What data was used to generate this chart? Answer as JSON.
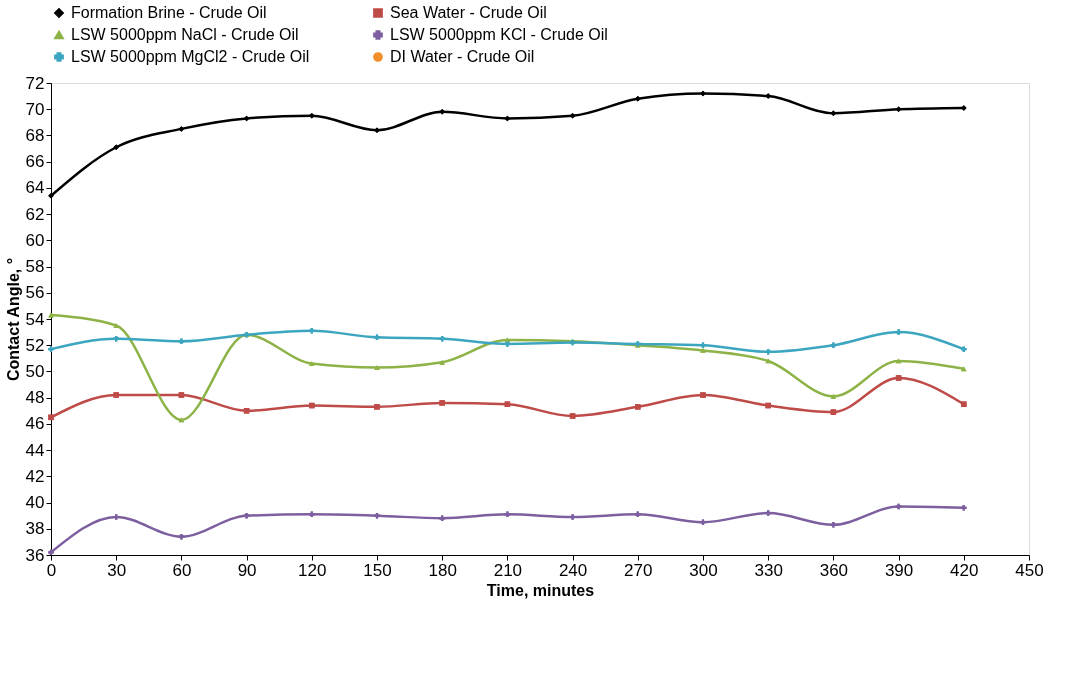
{
  "chart_data": {
    "type": "line",
    "xlabel": "Time, minutes",
    "ylabel": "Contact Angle, °",
    "x": [
      0,
      30,
      60,
      90,
      120,
      150,
      180,
      210,
      240,
      270,
      300,
      330,
      360,
      390,
      420
    ],
    "xlim": [
      0,
      450
    ],
    "xticks": [
      0,
      30,
      60,
      90,
      120,
      150,
      180,
      210,
      240,
      270,
      300,
      330,
      360,
      390,
      420,
      450
    ],
    "ylim": [
      36,
      72
    ],
    "yticks": [
      36,
      38,
      40,
      42,
      44,
      46,
      48,
      50,
      52,
      54,
      56,
      58,
      60,
      62,
      64,
      66,
      68,
      70,
      72
    ],
    "grid": false,
    "legend": "top",
    "line_style": "solid",
    "series": [
      {
        "name": "Formation Brine - Crude Oil",
        "color": "#000000",
        "marker": "diamond",
        "values": [
          63.4,
          67.1,
          68.5,
          69.3,
          69.5,
          68.4,
          69.8,
          69.3,
          69.5,
          70.8,
          71.2,
          71.0,
          69.7,
          70.0,
          70.1
        ]
      },
      {
        "name": "Sea Water - Crude Oil",
        "color": "#be4b48",
        "marker": "square",
        "values": [
          46.5,
          48.2,
          48.2,
          47.0,
          47.4,
          47.3,
          47.6,
          47.5,
          46.6,
          47.3,
          48.2,
          47.4,
          46.9,
          49.5,
          47.5
        ]
      },
      {
        "name": "LSW 5000ppm NaCl - Crude Oil",
        "color": "#8db346",
        "marker": "triangle",
        "values": [
          54.3,
          53.5,
          46.3,
          52.8,
          50.6,
          50.3,
          50.7,
          52.4,
          52.3,
          52.0,
          51.6,
          50.8,
          48.1,
          50.8,
          50.2
        ]
      },
      {
        "name": "LSW 5000ppm KCl - Crude Oil",
        "color": "#7d5fa0",
        "marker": "cross",
        "values": [
          36.2,
          38.9,
          37.4,
          39.0,
          39.1,
          39.0,
          38.8,
          39.1,
          38.9,
          39.1,
          38.5,
          39.2,
          38.3,
          39.7,
          39.6
        ]
      },
      {
        "name": "LSW 5000ppm MgCl2 - Crude Oil",
        "color": "#3ca5bf",
        "marker": "cross",
        "values": [
          51.7,
          52.5,
          52.3,
          52.8,
          53.1,
          52.6,
          52.5,
          52.1,
          52.2,
          52.1,
          52.0,
          51.5,
          52.0,
          53.0,
          51.7
        ]
      },
      {
        "name": "DI Water - Crude Oil",
        "color": "#f28e2b",
        "marker": "circle",
        "values": [
          null,
          null,
          null,
          null,
          null,
          null,
          null,
          null,
          null,
          null,
          null,
          null,
          null,
          null,
          null
        ]
      }
    ]
  }
}
